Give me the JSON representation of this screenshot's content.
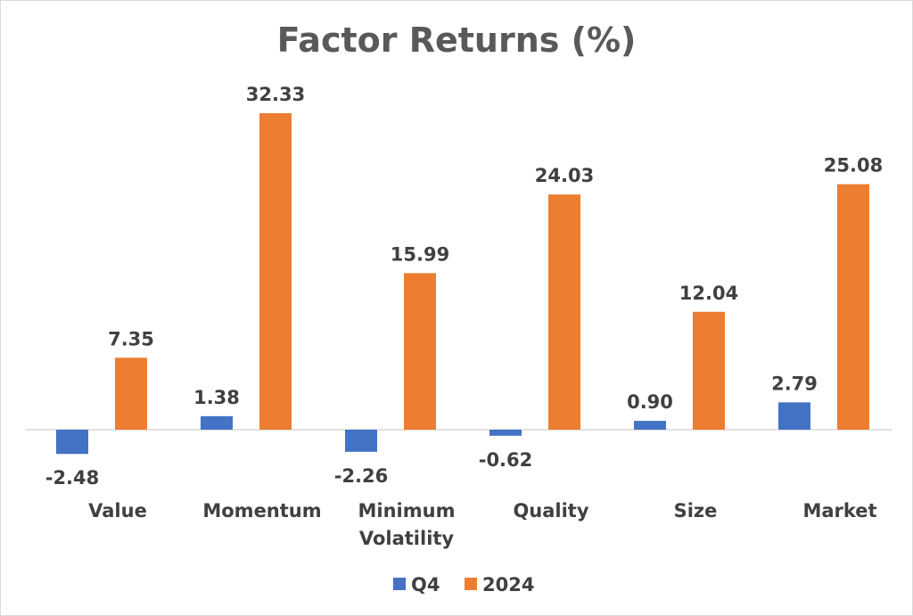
{
  "chart_data": {
    "type": "bar",
    "title": "Factor Returns (%)",
    "categories": [
      "Value",
      "Momentum",
      "Minimum Volatility",
      "Quality",
      "Size",
      "Market"
    ],
    "category_lines": [
      [
        "Value"
      ],
      [
        "Momentum"
      ],
      [
        "Minimum",
        "Volatility"
      ],
      [
        "Quality"
      ],
      [
        "Size"
      ],
      [
        "Market"
      ]
    ],
    "series": [
      {
        "name": "Q4",
        "color": "#4472c4",
        "values": [
          -2.48,
          1.38,
          -2.26,
          -0.62,
          0.9,
          2.79
        ],
        "labels": [
          "-2.48",
          "1.38",
          "-2.26",
          "-0.62",
          "0.90",
          "2.79"
        ]
      },
      {
        "name": "2024",
        "color": "#ed7d31",
        "values": [
          7.35,
          32.33,
          15.99,
          24.03,
          12.04,
          25.08
        ],
        "labels": [
          "7.35",
          "32.33",
          "15.99",
          "24.03",
          "12.04",
          "25.08"
        ]
      }
    ],
    "xlabel": "",
    "ylabel": "",
    "ylim": [
      -5,
      35
    ],
    "grid": false,
    "legend": "bottom"
  }
}
